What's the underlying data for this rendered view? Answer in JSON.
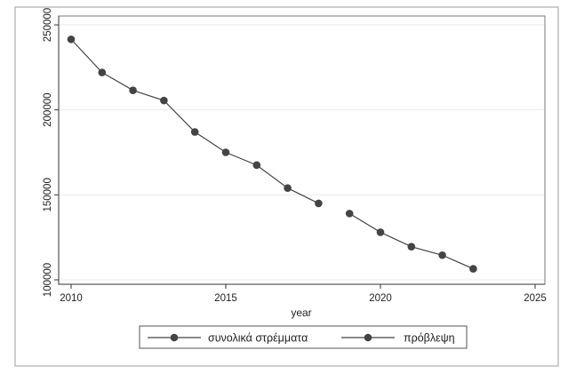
{
  "chart_data": {
    "type": "line",
    "xlabel": "year",
    "ylabel": "",
    "xlim": [
      2010,
      2025
    ],
    "ylim": [
      100000,
      250000
    ],
    "x_ticks": [
      2010,
      2015,
      2020,
      2025
    ],
    "y_ticks": [
      100000,
      150000,
      200000,
      250000
    ],
    "x_tick_labels": [
      "2010",
      "2015",
      "2020",
      "2025"
    ],
    "y_tick_labels": [
      "100000",
      "150000",
      "200000",
      "250000"
    ],
    "grid": true,
    "legend_position": "bottom",
    "series": [
      {
        "name": "συνολικά στρέμματα",
        "color": "#444444",
        "x": [
          2010,
          2011,
          2012,
          2013,
          2014,
          2015,
          2016,
          2017,
          2018
        ],
        "y": [
          241500,
          222000,
          211500,
          205500,
          187000,
          175000,
          167500,
          154000,
          145000
        ]
      },
      {
        "name": "πρόβλεψη",
        "color": "#444444",
        "x": [
          2019,
          2020,
          2021,
          2022,
          2023
        ],
        "y": [
          139000,
          128000,
          119500,
          114500,
          106500
        ]
      }
    ]
  }
}
